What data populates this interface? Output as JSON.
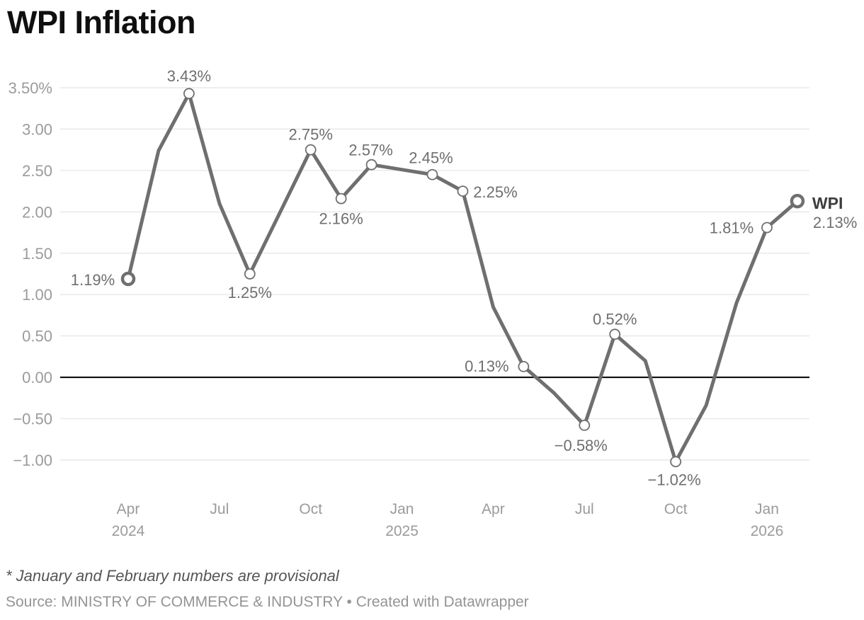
{
  "header": {
    "title": "WPI Inflation"
  },
  "footer": {
    "footnote": "* January and February numbers are provisional",
    "source": "Source: MINISTRY OF COMMERCE & INDUSTRY • Created with Datawrapper"
  },
  "style": {
    "background": "#ffffff",
    "line": "#6f6f6f",
    "marker_fill": "#ffffff",
    "data_label": "#6f6f6f",
    "axis_label": "#9b9b9b",
    "gridline": "#e9e9e9",
    "zero_line": "#000000",
    "title": "#0f0f0f",
    "end_label_name": "#3d3d3d",
    "end_label_value": "#6f6f6f",
    "footnote": "#555555",
    "source": "#949494"
  },
  "chart_data": {
    "type": "line",
    "title": "WPI Inflation",
    "unit": "%",
    "grid": true,
    "zero_line": true,
    "ylim": [
      -1.0,
      3.5
    ],
    "ytick_step": 0.5,
    "x_range": [
      "Apr 2024",
      "Feb 2026"
    ],
    "series": [
      {
        "name": "WPI",
        "points": [
          {
            "month": "Apr 2024",
            "value": 1.19,
            "label": "1.19%",
            "label_dx": -50,
            "label_dy": 1,
            "marker": "bold"
          },
          {
            "month": "May 2024",
            "value": 2.74
          },
          {
            "month": "Jun 2024",
            "value": 3.43,
            "label": "3.43%",
            "label_dx": 0,
            "label_dy": -25,
            "marker": "ring"
          },
          {
            "month": "Jul 2024",
            "value": 2.1
          },
          {
            "month": "Aug 2024",
            "value": 1.25,
            "label": "1.25%",
            "label_dx": 0,
            "label_dy": 26,
            "marker": "ring"
          },
          {
            "month": "Sep 2024",
            "value": 2.0
          },
          {
            "month": "Oct 2024",
            "value": 2.75,
            "label": "2.75%",
            "label_dx": 0,
            "label_dy": -22,
            "marker": "ring"
          },
          {
            "month": "Nov 2024",
            "value": 2.16,
            "label": "2.16%",
            "label_dx": 0,
            "label_dy": 28,
            "marker": "ring"
          },
          {
            "month": "Dec 2024",
            "value": 2.57,
            "label": "2.57%",
            "label_dx": -1,
            "label_dy": -21,
            "marker": "ring"
          },
          {
            "month": "Jan 2025",
            "value": 2.51
          },
          {
            "month": "Feb 2025",
            "value": 2.45,
            "label": "2.45%",
            "label_dx": -2,
            "label_dy": -24,
            "marker": "ring"
          },
          {
            "month": "Mar 2025",
            "value": 2.25,
            "label": "2.25%",
            "label_dx": 46,
            "label_dy": 1,
            "marker": "ring"
          },
          {
            "month": "Apr 2025",
            "value": 0.85
          },
          {
            "month": "May 2025",
            "value": 0.13,
            "label": "0.13%",
            "label_dx": -52,
            "label_dy": -1,
            "marker": "ring"
          },
          {
            "month": "Jun 2025",
            "value": -0.19
          },
          {
            "month": "Jul 2025",
            "value": -0.58,
            "label": "−0.58%",
            "label_dx": -5,
            "label_dy": 28,
            "marker": "ring"
          },
          {
            "month": "Aug 2025",
            "value": 0.52,
            "label": "0.52%",
            "label_dx": 0,
            "label_dy": -22,
            "marker": "ring"
          },
          {
            "month": "Sep 2025",
            "value": 0.2
          },
          {
            "month": "Oct 2025",
            "value": -1.02,
            "label": "−1.02%",
            "label_dx": -2,
            "label_dy": 25,
            "marker": "ring"
          },
          {
            "month": "Nov 2025",
            "value": -0.34
          },
          {
            "month": "Dec 2025",
            "value": 0.9
          },
          {
            "month": "Jan 2026",
            "value": 1.81,
            "label": "1.81%",
            "label_dx": -50,
            "label_dy": 0,
            "marker": "ring"
          },
          {
            "month": "Feb 2026",
            "value": 2.13,
            "marker": "bold"
          }
        ]
      }
    ],
    "end_label": {
      "name": "WPI",
      "value": "2.13%"
    },
    "y_ticks": [
      {
        "label": "3.50%",
        "value": 3.5
      },
      {
        "label": "3.00",
        "value": 3.0
      },
      {
        "label": "2.50",
        "value": 2.5
      },
      {
        "label": "2.00",
        "value": 2.0
      },
      {
        "label": "1.50",
        "value": 1.5
      },
      {
        "label": "1.00",
        "value": 1.0
      },
      {
        "label": "0.50",
        "value": 0.5
      },
      {
        "label": "0.00",
        "value": 0.0
      },
      {
        "label": "−0.50",
        "value": -0.5
      },
      {
        "label": "−1.00",
        "value": -1.0
      }
    ],
    "x_ticks": [
      {
        "label": "Apr",
        "year": "2024",
        "index": 0
      },
      {
        "label": "Jul",
        "index": 3
      },
      {
        "label": "Oct",
        "index": 6
      },
      {
        "label": "Jan",
        "year": "2025",
        "index": 9
      },
      {
        "label": "Apr",
        "index": 12
      },
      {
        "label": "Jul",
        "index": 15
      },
      {
        "label": "Oct",
        "index": 18
      },
      {
        "label": "Jan",
        "year": "2026",
        "index": 21
      }
    ]
  }
}
